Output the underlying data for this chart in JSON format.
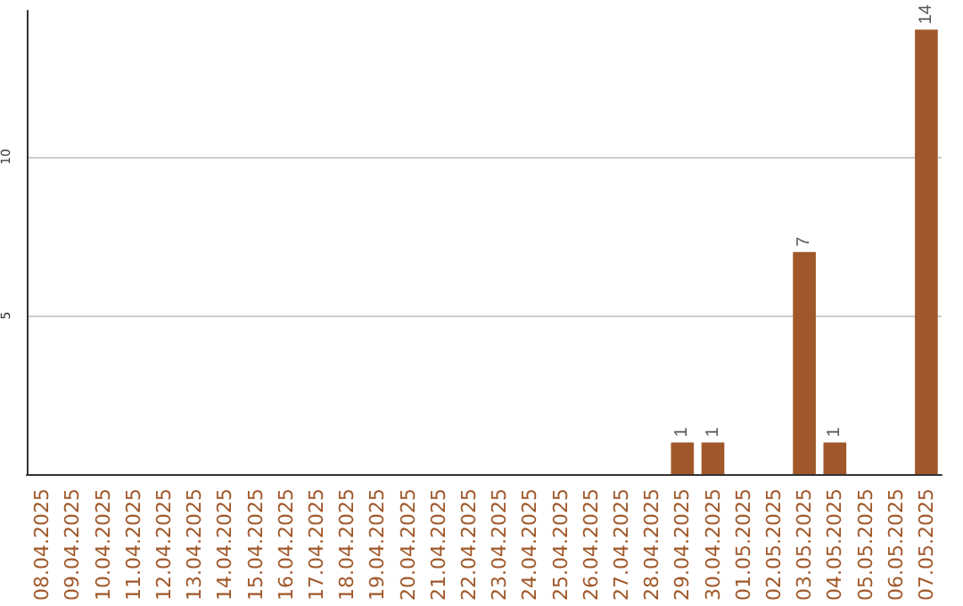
{
  "chart_data": {
    "type": "bar",
    "categories": [
      "08.04.2025",
      "09.04.2025",
      "10.04.2025",
      "11.04.2025",
      "12.04.2025",
      "13.04.2025",
      "14.04.2025",
      "15.04.2025",
      "16.04.2025",
      "17.04.2025",
      "18.04.2025",
      "19.04.2025",
      "20.04.2025",
      "21.04.2025",
      "22.04.2025",
      "23.04.2025",
      "24.04.2025",
      "25.04.2025",
      "26.04.2025",
      "27.04.2025",
      "28.04.2025",
      "29.04.2025",
      "30.04.2025",
      "01.05.2025",
      "02.05.2025",
      "03.05.2025",
      "04.05.2025",
      "05.05.2025",
      "06.05.2025",
      "07.05.2025"
    ],
    "values": [
      0,
      0,
      0,
      0,
      0,
      0,
      0,
      0,
      0,
      0,
      0,
      0,
      0,
      0,
      0,
      0,
      0,
      0,
      0,
      0,
      0,
      1,
      1,
      0,
      0,
      7,
      1,
      0,
      0,
      14
    ],
    "value_labels": [
      null,
      null,
      null,
      null,
      null,
      null,
      null,
      null,
      null,
      null,
      null,
      null,
      null,
      null,
      null,
      null,
      null,
      null,
      null,
      null,
      null,
      "1",
      "1",
      null,
      null,
      "7",
      "1",
      null,
      null,
      "14"
    ],
    "color": "#a0582a",
    "ylim": [
      0,
      14.6
    ],
    "yticks": [
      5,
      10
    ],
    "grid": "y"
  }
}
